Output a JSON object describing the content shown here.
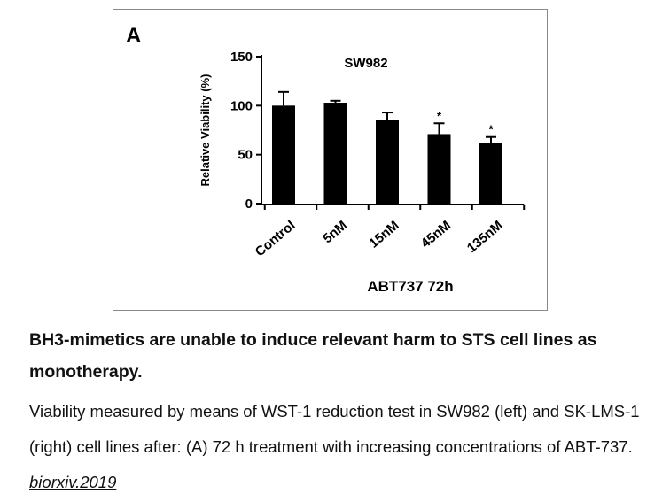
{
  "chart_data": {
    "type": "bar",
    "panel_label": "A",
    "title": "SW982",
    "xlabel": "ABT737 72h",
    "ylabel": "Relative Viability (%)",
    "ylim": [
      0,
      150
    ],
    "yticks": [
      0,
      50,
      100,
      150
    ],
    "categories": [
      "Control",
      "5nM",
      "15nM",
      "45nM",
      "135nM"
    ],
    "values": [
      100,
      103,
      85,
      71,
      62
    ],
    "errors": [
      14,
      2,
      8,
      11,
      6
    ],
    "annotations": [
      "",
      "",
      "",
      "*",
      "*"
    ],
    "bar_color": "#000000",
    "grid": false
  },
  "caption": {
    "title": "BH3-mimetics are unable to induce relevant harm to STS cell lines as monotherapy.",
    "body": "Viability measured by means of WST-1 reduction test in SW982 (left) and SK-LMS-1 (right) cell lines after: (A) 72 h treatment with increasing concentrations of ABT-737. ",
    "reference": "biorxiv.2019"
  }
}
